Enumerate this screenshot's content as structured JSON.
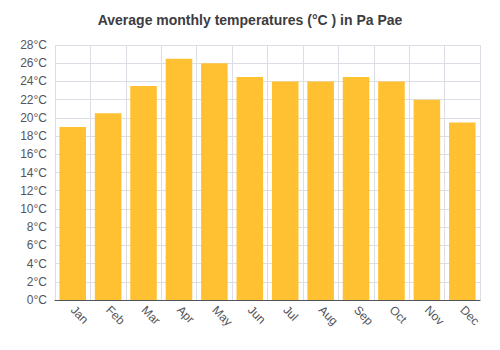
{
  "chart_data": {
    "type": "bar",
    "title": "Average monthly temperatures (°C ) in Pa Pae",
    "categories": [
      "Jan",
      "Feb",
      "Mar",
      "Apr",
      "May",
      "Jun",
      "Jul",
      "Aug",
      "Sep",
      "Oct",
      "Nov",
      "Dec"
    ],
    "values": [
      19.0,
      20.5,
      23.5,
      26.5,
      26.0,
      24.5,
      24.0,
      24.0,
      24.5,
      24.0,
      22.0,
      19.5
    ],
    "color": "#FFC132",
    "ylim": [
      0,
      28
    ],
    "yticks": [
      {
        "value": 0,
        "label": "0°C"
      },
      {
        "value": 2,
        "label": "2°C"
      },
      {
        "value": 4,
        "label": "4°C"
      },
      {
        "value": 6,
        "label": "6°C"
      },
      {
        "value": 8,
        "label": "8°C"
      },
      {
        "value": 10,
        "label": "10°C"
      },
      {
        "value": 12,
        "label": "12°C"
      },
      {
        "value": 14,
        "label": "14°C"
      },
      {
        "value": 16,
        "label": "16°C"
      },
      {
        "value": 18,
        "label": "18°C"
      },
      {
        "value": 20,
        "label": "20°C"
      },
      {
        "value": 22,
        "label": "22°C"
      },
      {
        "value": 24,
        "label": "24°C"
      },
      {
        "value": 26,
        "label": "26°C"
      },
      {
        "value": 28,
        "label": "28°C"
      }
    ],
    "grid": true
  }
}
